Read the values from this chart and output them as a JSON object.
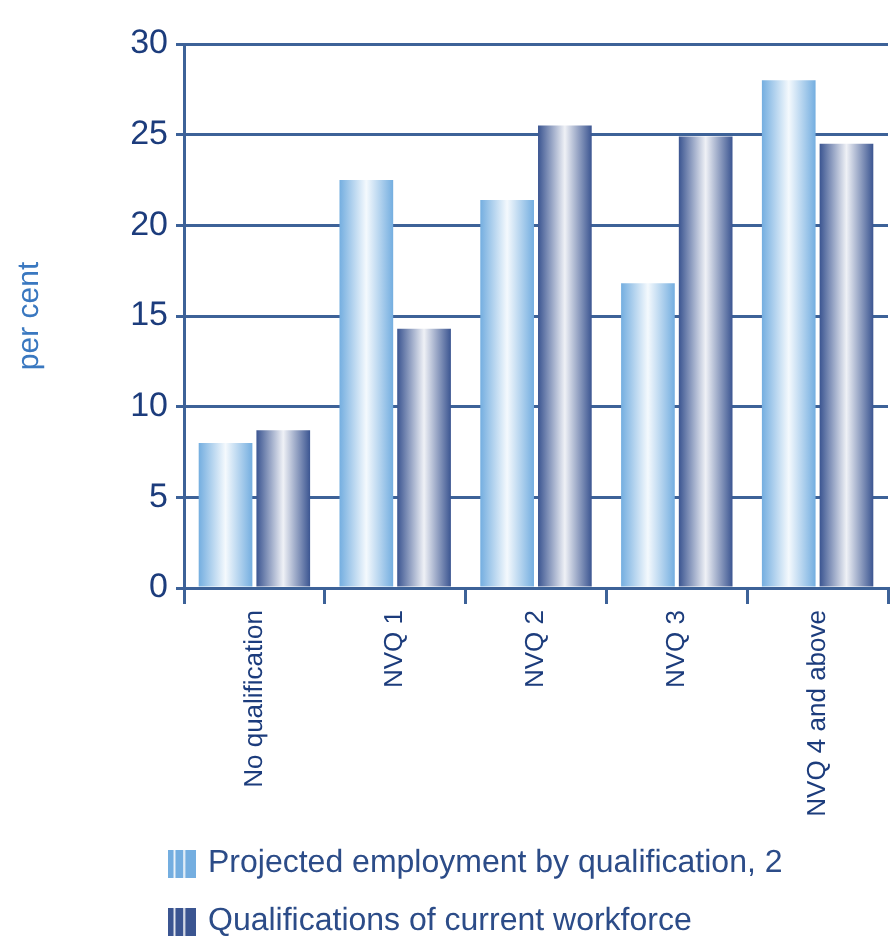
{
  "chart_data": {
    "type": "bar",
    "ylabel": "per cent",
    "categories": [
      "No qualification",
      "NVQ 1",
      "NVQ 2",
      "NVQ 3",
      "NVQ 4 and above"
    ],
    "series": [
      {
        "name": "Projected employment by qualification, 2",
        "color": "#74aee0",
        "values": [
          8.0,
          22.5,
          21.4,
          16.8,
          28.0
        ]
      },
      {
        "name": "Qualifications of current workforce",
        "color": "#3b5591",
        "values": [
          8.7,
          14.3,
          25.5,
          24.9,
          24.5
        ]
      }
    ],
    "ylim": [
      0,
      30
    ],
    "yticks": [
      0,
      5,
      10,
      15,
      20,
      25,
      30
    ],
    "grid": "y",
    "legend": "bottom"
  }
}
